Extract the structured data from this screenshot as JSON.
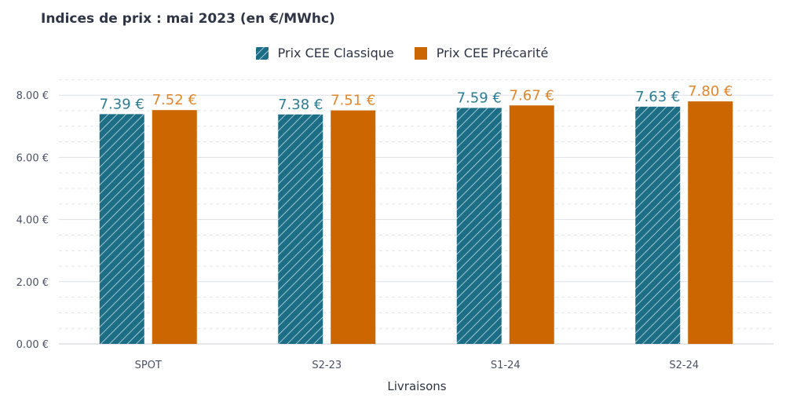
{
  "chart_data": {
    "type": "bar",
    "title": "Indices de prix : mai 2023 (en €/MWhc)",
    "xlabel": "Livraisons",
    "ylabel": "",
    "categories": [
      "SPOT",
      "S2-23",
      "S1-24",
      "S2-24"
    ],
    "ylim": [
      0,
      8.5
    ],
    "yticks": [
      0,
      2,
      4,
      6,
      8
    ],
    "ytick_labels": [
      "0.00 €",
      "2.00 €",
      "4.00 €",
      "6.00 €",
      "8.00 €"
    ],
    "grid": true,
    "legend_position": "top-center",
    "series": [
      {
        "name": "Prix CEE Classique",
        "values": [
          7.39,
          7.38,
          7.59,
          7.63
        ],
        "labels": [
          "7.39 €",
          "7.38 €",
          "7.59 €",
          "7.63 €"
        ],
        "color": "#1c6e86",
        "label_color": "#2a7e96",
        "pattern": "hatched"
      },
      {
        "name": "Prix CEE Précarité",
        "values": [
          7.52,
          7.51,
          7.67,
          7.8
        ],
        "labels": [
          "7.52 €",
          "7.51 €",
          "7.67 €",
          "7.80 €"
        ],
        "color": "#cc6600",
        "label_color": "#e2862a",
        "pattern": "solid"
      }
    ]
  }
}
